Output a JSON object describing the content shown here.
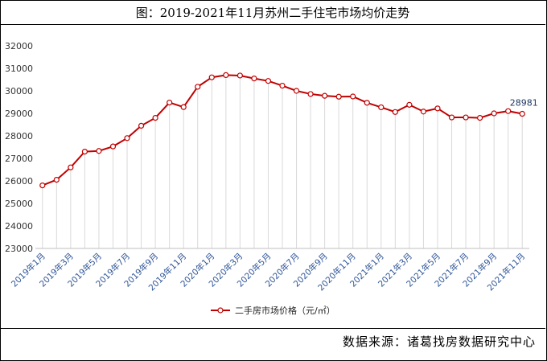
{
  "header": {
    "title": "图：2019-2021年11月苏州二手住宅市场均价走势"
  },
  "footer": {
    "source": "数据来源：诸葛找房数据研究中心"
  },
  "chart_data": {
    "type": "line",
    "title": "图：2019-2021年11月苏州二手住宅市场均价走势",
    "xlabel": "",
    "ylabel": "",
    "ylim": [
      23000,
      32000
    ],
    "yticks": [
      23000,
      24000,
      25000,
      26000,
      27000,
      28000,
      29000,
      30000,
      31000,
      32000
    ],
    "grid": "vertical drop-lines",
    "legend_position": "bottom",
    "line_color": "#c00000",
    "x": [
      "2019年1月",
      "2019年2月",
      "2019年3月",
      "2019年4月",
      "2019年5月",
      "2019年6月",
      "2019年7月",
      "2019年8月",
      "2019年9月",
      "2019年10月",
      "2019年11月",
      "2019年12月",
      "2020年1月",
      "2020年2月",
      "2020年3月",
      "2020年4月",
      "2020年5月",
      "2020年6月",
      "2020年7月",
      "2020年8月",
      "2020年9月",
      "2020年10月",
      "2020年11月",
      "2020年12月",
      "2021年1月",
      "2021年2月",
      "2021年3月",
      "2021年4月",
      "2021年5月",
      "2021年6月",
      "2021年7月",
      "2021年8月",
      "2021年9月",
      "2021年10月",
      "2021年11月"
    ],
    "x_tick_labels": [
      "2019年1月",
      "2019年3月",
      "2019年5月",
      "2019年7月",
      "2019年9月",
      "2019年11月",
      "2020年1月",
      "2020年3月",
      "2020年5月",
      "2020年7月",
      "2020年9月",
      "2020年11月",
      "2021年1月",
      "2021年3月",
      "2021年5月",
      "2021年7月",
      "2021年9月",
      "2021年11月"
    ],
    "series": [
      {
        "name": "二手房市场价格（元/㎡）",
        "values": [
          25800,
          26050,
          26600,
          27300,
          27330,
          27530,
          27900,
          28450,
          28800,
          29480,
          29280,
          30180,
          30600,
          30700,
          30680,
          30550,
          30440,
          30230,
          30000,
          29860,
          29780,
          29740,
          29750,
          29470,
          29270,
          29060,
          29380,
          29080,
          29220,
          28820,
          28820,
          28800,
          29000,
          29100,
          28981
        ]
      }
    ],
    "annotations": [
      {
        "label": "28981",
        "x": "2021年11月"
      }
    ]
  }
}
